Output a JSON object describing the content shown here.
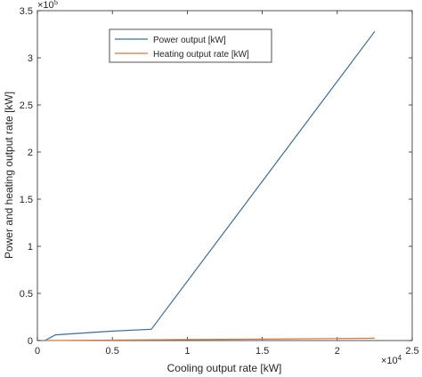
{
  "chart_data": {
    "type": "line",
    "xlabel": "Cooling output rate [kW]",
    "ylabel": "Power and heating output rate [kW]",
    "xlim": [
      0,
      2.5
    ],
    "ylim": [
      0,
      3.5
    ],
    "x_multiplier_base": "×10",
    "x_multiplier_exp": "4",
    "y_multiplier_base": "×10",
    "y_multiplier_exp": "5",
    "xticks": [
      "0",
      "0.5",
      "1",
      "1.5",
      "2",
      "2.5"
    ],
    "yticks": [
      "0",
      "0.5",
      "1",
      "1.5",
      "2",
      "2.5",
      "3",
      "3.5"
    ],
    "grid": false,
    "legend_position": "top-center",
    "series": [
      {
        "name": "Power output [kW]",
        "color": "#3a6d9c",
        "x": [
          0.05,
          0.12,
          0.5,
          0.76,
          2.25
        ],
        "y": [
          0.0,
          0.06,
          0.1,
          0.12,
          3.28
        ]
      },
      {
        "name": "Heating output rate [kW]",
        "color": "#d9783e",
        "x": [
          0.05,
          0.5,
          1.0,
          1.5,
          2.25
        ],
        "y": [
          0.0,
          0.005,
          0.01,
          0.015,
          0.025
        ]
      }
    ]
  }
}
